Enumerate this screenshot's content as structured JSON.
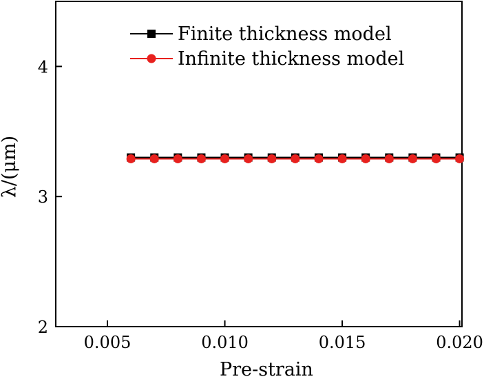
{
  "chart_data": {
    "type": "line",
    "xlabel": "Pre-strain",
    "ylabel": "λ/(μm)",
    "xlim": [
      0.0028,
      0.0201
    ],
    "ylim": [
      2,
      4.5
    ],
    "xticks": [
      0.005,
      0.01,
      0.015,
      0.02
    ],
    "xtick_labels": [
      "0.005",
      "0.010",
      "0.015",
      "0.020"
    ],
    "yticks": [
      2,
      3,
      4
    ],
    "ytick_labels": [
      "2",
      "3",
      "4"
    ],
    "grid": false,
    "legend_position": "top-center",
    "x": [
      0.006,
      0.007,
      0.008,
      0.009,
      0.01,
      0.011,
      0.012,
      0.013,
      0.014,
      0.015,
      0.016,
      0.017,
      0.018,
      0.019,
      0.02
    ],
    "series": [
      {
        "name": "Finite thickness model",
        "marker": "square",
        "color": "#000000",
        "values": [
          3.3,
          3.3,
          3.3,
          3.3,
          3.3,
          3.3,
          3.3,
          3.3,
          3.3,
          3.3,
          3.3,
          3.3,
          3.3,
          3.3,
          3.3
        ]
      },
      {
        "name": "Infinite thickness model",
        "marker": "circle",
        "color": "#e8211e",
        "values": [
          3.29,
          3.29,
          3.29,
          3.29,
          3.29,
          3.29,
          3.29,
          3.29,
          3.29,
          3.29,
          3.29,
          3.29,
          3.29,
          3.29,
          3.29
        ]
      }
    ]
  }
}
